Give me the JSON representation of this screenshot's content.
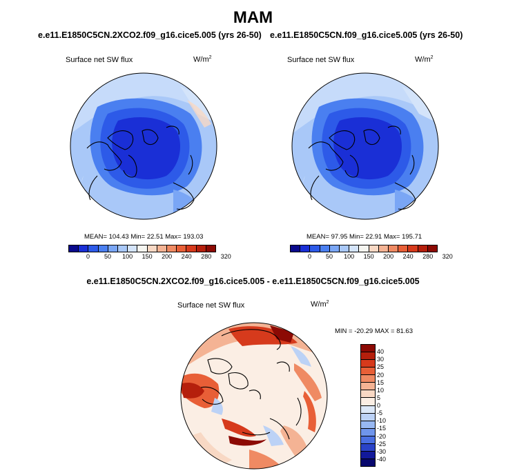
{
  "title": "MAM",
  "panels": [
    {
      "title": "e.e11.E1850C5CN.2XCO2.f09_g16.cice5.005 (yrs 26-50)",
      "variable": "Surface net SW flux",
      "units_base": "W/m",
      "units_exp": "2",
      "stats": "MEAN= 104.43  Min=  22.51  Max= 193.03"
    },
    {
      "title": "e.e11.E1850C5CN.f09_g16.cice5.005 (yrs 26-50)",
      "variable": "Surface net SW flux",
      "units_base": "W/m",
      "units_exp": "2",
      "stats": "MEAN=  97.95  Min=  22.91  Max= 195.71"
    }
  ],
  "colorbar_top": {
    "ticks": [
      "0",
      "50",
      "100",
      "150",
      "200",
      "240",
      "280",
      "320"
    ],
    "colors": [
      "#0a0a8c",
      "#1a2fd6",
      "#2d5ae8",
      "#4a7ff0",
      "#7aa6f5",
      "#a9c8f8",
      "#d4e4fa",
      "#f5f5f0",
      "#f8d8c4",
      "#f4b394",
      "#ef8a63",
      "#e85f37",
      "#d63a1c",
      "#b51f0c",
      "#8c0a04"
    ]
  },
  "diff": {
    "title": "e.e11.E1850C5CN.2XCO2.f09_g16.cice5.005 - e.e11.E1850C5CN.f09_g16.cice5.005",
    "variable": "Surface net SW flux",
    "units_base": "W/m",
    "units_exp": "2",
    "stats": "MIN = -20.29 MAX =  81.63",
    "colorbar": {
      "ticks": [
        "40",
        "30",
        "25",
        "20",
        "15",
        "10",
        "5",
        "0",
        "-5",
        "-10",
        "-15",
        "-20",
        "-25",
        "-30",
        "-40"
      ],
      "colors": [
        "#8c0a04",
        "#b51f0c",
        "#d63a1c",
        "#e85f37",
        "#ef8a63",
        "#f4b394",
        "#f8d8c4",
        "#fbeee4",
        "#dce8f8",
        "#bcd2f6",
        "#98b8f2",
        "#6f95ec",
        "#4a6fe2",
        "#2a43c8",
        "#12199a",
        "#08086e"
      ]
    }
  }
}
